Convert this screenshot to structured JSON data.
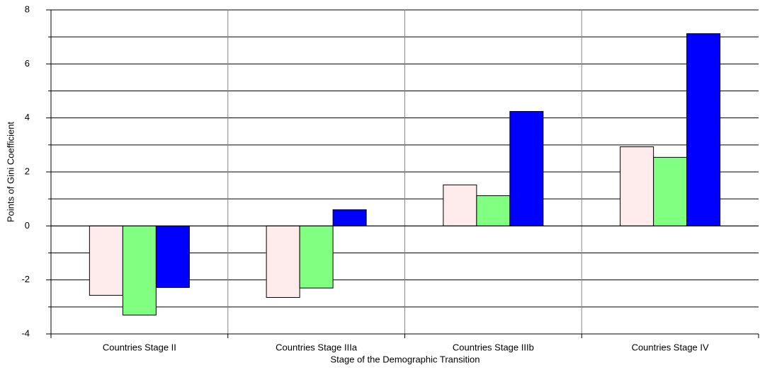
{
  "chart_data": {
    "type": "bar",
    "x_label": "Stage of the Demographic Transition",
    "y_label": "Points of Gini Coefficient",
    "categories": [
      "Countries Stage II",
      "Countries Stage IIIa",
      "Countries Stage IIIb",
      "Countries Stage IV"
    ],
    "series": [
      {
        "color": "#fdeceb",
        "values": [
          -2.57,
          -2.65,
          1.52,
          2.93
        ]
      },
      {
        "color": "#80ff80",
        "values": [
          -3.3,
          -2.3,
          1.12,
          2.54
        ]
      },
      {
        "color": "#0000ff",
        "values": [
          -2.28,
          0.6,
          4.24,
          7.12
        ]
      }
    ],
    "ylim": [
      -4,
      8
    ],
    "yticks": [
      -4,
      -2,
      0,
      2,
      4,
      6,
      8
    ],
    "yminor": [
      -3,
      -1,
      1,
      3,
      5,
      7
    ],
    "grid": true
  }
}
